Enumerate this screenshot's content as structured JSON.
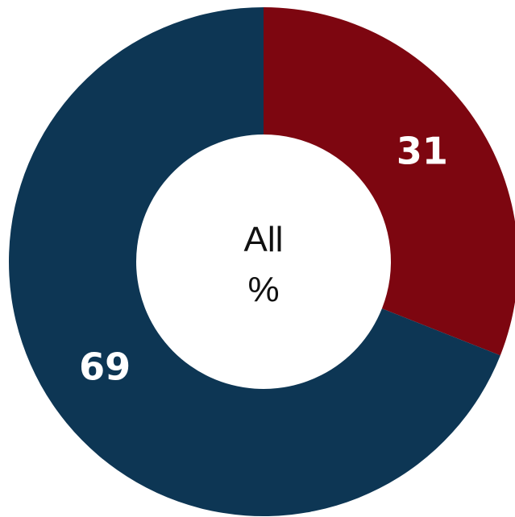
{
  "chart_data": {
    "type": "pie",
    "variant": "donut",
    "center_label": [
      "All",
      "%"
    ],
    "slices": [
      {
        "label": "31",
        "value": 31,
        "color": "#7d0610"
      },
      {
        "label": "69",
        "value": 69,
        "color": "#0d3654"
      }
    ],
    "start_angle_degrees": 0,
    "direction": "clockwise"
  }
}
